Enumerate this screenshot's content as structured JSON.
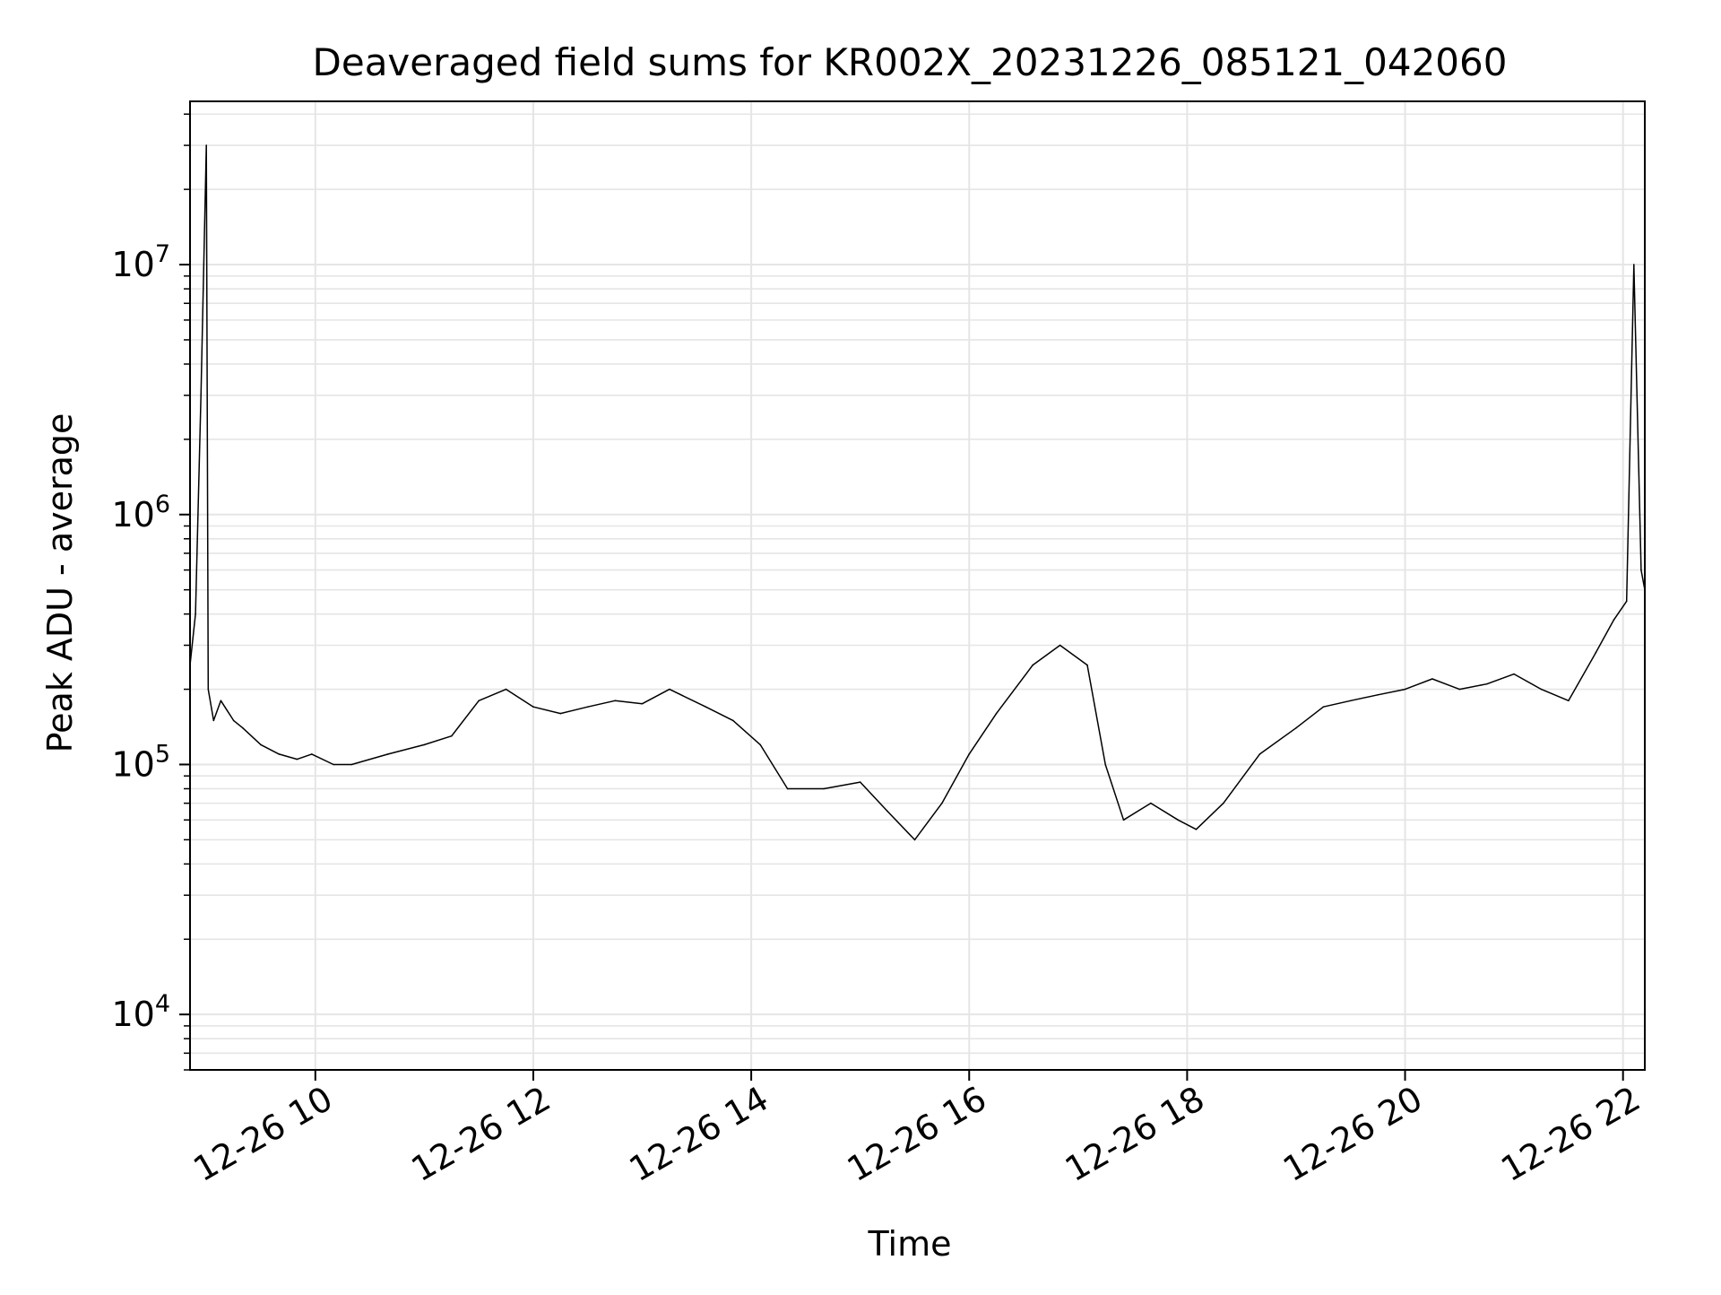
{
  "chart_data": {
    "type": "line",
    "title": "Deaveraged field sums for KR002X_20231226_085121_042060",
    "xlabel": "Time",
    "ylabel": "Peak ADU - average",
    "x_scale": "time",
    "y_scale": "log",
    "xlim": [
      "2023-12-26T08:51",
      "2023-12-26T22:12"
    ],
    "ylim": [
      6000,
      45000000
    ],
    "x_ticks": [
      "12-26 10",
      "12-26 12",
      "12-26 14",
      "12-26 16",
      "12-26 18",
      "12-26 20",
      "12-26 22"
    ],
    "y_ticks": [
      {
        "value": 10000,
        "mantissa": "10",
        "exponent": "4"
      },
      {
        "value": 100000,
        "mantissa": "10",
        "exponent": "5"
      },
      {
        "value": 1000000,
        "mantissa": "10",
        "exponent": "6"
      },
      {
        "value": 10000000,
        "mantissa": "10",
        "exponent": "7"
      }
    ],
    "grid": true,
    "line_color": "#000000",
    "grid_color": "#e5e5e5",
    "series": [
      {
        "x": [
          "2023-12-26T08:51",
          "2023-12-26T08:54",
          "2023-12-26T08:57",
          "2023-12-26T09:00",
          "2023-12-26T09:01",
          "2023-12-26T09:04",
          "2023-12-26T09:08",
          "2023-12-26T09:15",
          "2023-12-26T09:20",
          "2023-12-26T09:30",
          "2023-12-26T09:40",
          "2023-12-26T09:50",
          "2023-12-26T09:58",
          "2023-12-26T10:10",
          "2023-12-26T10:20",
          "2023-12-26T10:40",
          "2023-12-26T11:00",
          "2023-12-26T11:15",
          "2023-12-26T11:30",
          "2023-12-26T11:45",
          "2023-12-26T12:00",
          "2023-12-26T12:15",
          "2023-12-26T12:30",
          "2023-12-26T12:45",
          "2023-12-26T13:00",
          "2023-12-26T13:15",
          "2023-12-26T13:35",
          "2023-12-26T13:50",
          "2023-12-26T14:05",
          "2023-12-26T14:20",
          "2023-12-26T14:40",
          "2023-12-26T15:00",
          "2023-12-26T15:15",
          "2023-12-26T15:30",
          "2023-12-26T15:45",
          "2023-12-26T16:00",
          "2023-12-26T16:15",
          "2023-12-26T16:35",
          "2023-12-26T16:50",
          "2023-12-26T17:05",
          "2023-12-26T17:15",
          "2023-12-26T17:25",
          "2023-12-26T17:40",
          "2023-12-26T17:55",
          "2023-12-26T18:05",
          "2023-12-26T18:20",
          "2023-12-26T18:40",
          "2023-12-26T19:00",
          "2023-12-26T19:15",
          "2023-12-26T19:30",
          "2023-12-26T19:45",
          "2023-12-26T20:00",
          "2023-12-26T20:15",
          "2023-12-26T20:30",
          "2023-12-26T20:45",
          "2023-12-26T21:00",
          "2023-12-26T21:15",
          "2023-12-26T21:30",
          "2023-12-26T21:45",
          "2023-12-26T21:55",
          "2023-12-26T22:02",
          "2023-12-26T22:06",
          "2023-12-26T22:10",
          "2023-12-26T22:12"
        ],
        "y": [
          250000,
          400000,
          3000000,
          30000000,
          200000,
          150000,
          180000,
          150000,
          140000,
          120000,
          110000,
          105000,
          110000,
          100000,
          100000,
          110000,
          120000,
          130000,
          180000,
          200000,
          170000,
          160000,
          170000,
          180000,
          175000,
          200000,
          170000,
          150000,
          120000,
          80000,
          80000,
          85000,
          65000,
          50000,
          70000,
          110000,
          160000,
          250000,
          300000,
          250000,
          100000,
          60000,
          70000,
          60000,
          55000,
          70000,
          110000,
          140000,
          170000,
          180000,
          190000,
          200000,
          220000,
          200000,
          210000,
          230000,
          200000,
          180000,
          280000,
          380000,
          450000,
          10000000,
          600000,
          500000
        ]
      }
    ]
  }
}
